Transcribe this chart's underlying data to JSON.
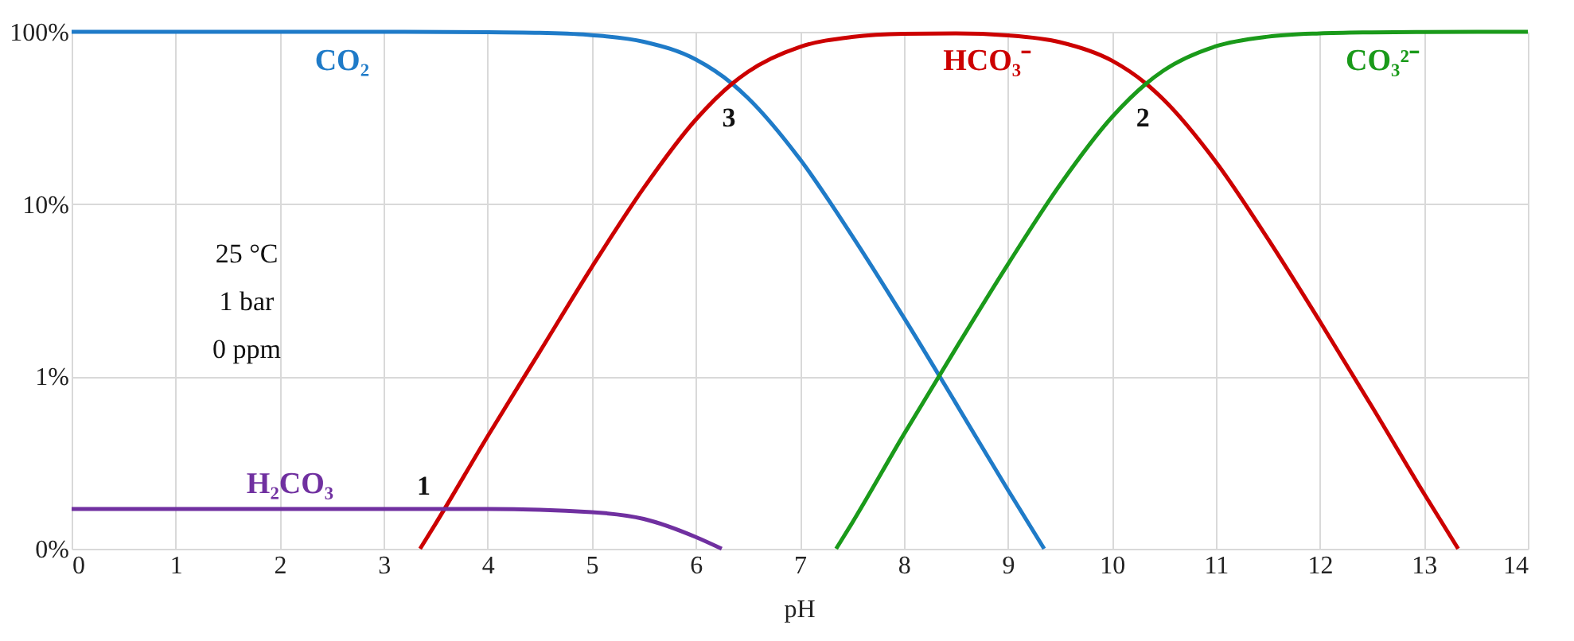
{
  "chart_data": {
    "type": "line",
    "xlabel": "pH",
    "log": "y",
    "grid": true,
    "marker": "none",
    "line_style": "solid",
    "xlim": [
      0,
      14
    ],
    "xticks": [
      0,
      1,
      2,
      3,
      4,
      5,
      6,
      7,
      8,
      9,
      10,
      11,
      12,
      13,
      14
    ],
    "ylim": [
      0.1,
      100
    ],
    "yticks": [
      {
        "value": 0.1,
        "label": "0%"
      },
      {
        "value": 1,
        "label": "1%"
      },
      {
        "value": 10,
        "label": "10%"
      },
      {
        "value": 100,
        "label": "100%"
      }
    ],
    "series": [
      {
        "name": "CO₂",
        "color": "#1f7bc8",
        "x": [
          0,
          1,
          2,
          3,
          4,
          4.5,
          5,
          5.5,
          6,
          6.35,
          6.5,
          7,
          7.5,
          8,
          8.5,
          9,
          9.35
        ],
        "values": [
          100,
          100,
          100,
          99.96,
          99.55,
          98.6,
          95.7,
          87.6,
          69.1,
          50,
          41.4,
          18.3,
          6.6,
          2.2,
          0.7,
          0.22,
          0.1
        ]
      },
      {
        "name": "HCO₃⁻",
        "color": "#cc0000",
        "x": [
          3.35,
          3.5,
          4,
          4.5,
          5,
          5.5,
          6,
          6.35,
          6.5,
          7,
          7.5,
          8,
          8.5,
          9,
          9.5,
          10,
          10.33,
          10.5,
          11,
          11.5,
          12,
          12.5,
          13,
          13.33
        ],
        "values": [
          0.1,
          0.14,
          0.45,
          1.39,
          4.3,
          12.4,
          30.9,
          50,
          58.5,
          81.7,
          93.3,
          97.3,
          97.8,
          95.3,
          87.1,
          68.1,
          50,
          40.3,
          17.6,
          6.3,
          2.09,
          0.67,
          0.21,
          0.1
        ]
      },
      {
        "name": "CO₃²⁻",
        "color": "#1a9a1a",
        "x": [
          7.35,
          7.5,
          8,
          8.5,
          9,
          9.5,
          10,
          10.33,
          10.5,
          11,
          11.5,
          12,
          12.5,
          13,
          14
        ],
        "values": [
          0.1,
          0.14,
          0.46,
          1.45,
          4.46,
          12.9,
          31.9,
          50,
          59.7,
          82.4,
          93.7,
          97.9,
          99.3,
          99.8,
          100
        ]
      },
      {
        "name": "H₂CO₃",
        "color": "#7030a0",
        "x": [
          0,
          1,
          2,
          3,
          4,
          5,
          5.5,
          6,
          6.25
        ],
        "values": [
          0.17,
          0.17,
          0.17,
          0.17,
          0.17,
          0.163,
          0.149,
          0.117,
          0.1
        ]
      }
    ],
    "annotations": [
      {
        "text": "1",
        "x": 3.6,
        "y": 0.17
      },
      {
        "text": "3",
        "x": 6.35,
        "y": 50
      },
      {
        "text": "2",
        "x": 10.33,
        "y": 50
      },
      "25 °C",
      "1 bar",
      "0 ppm"
    ]
  }
}
